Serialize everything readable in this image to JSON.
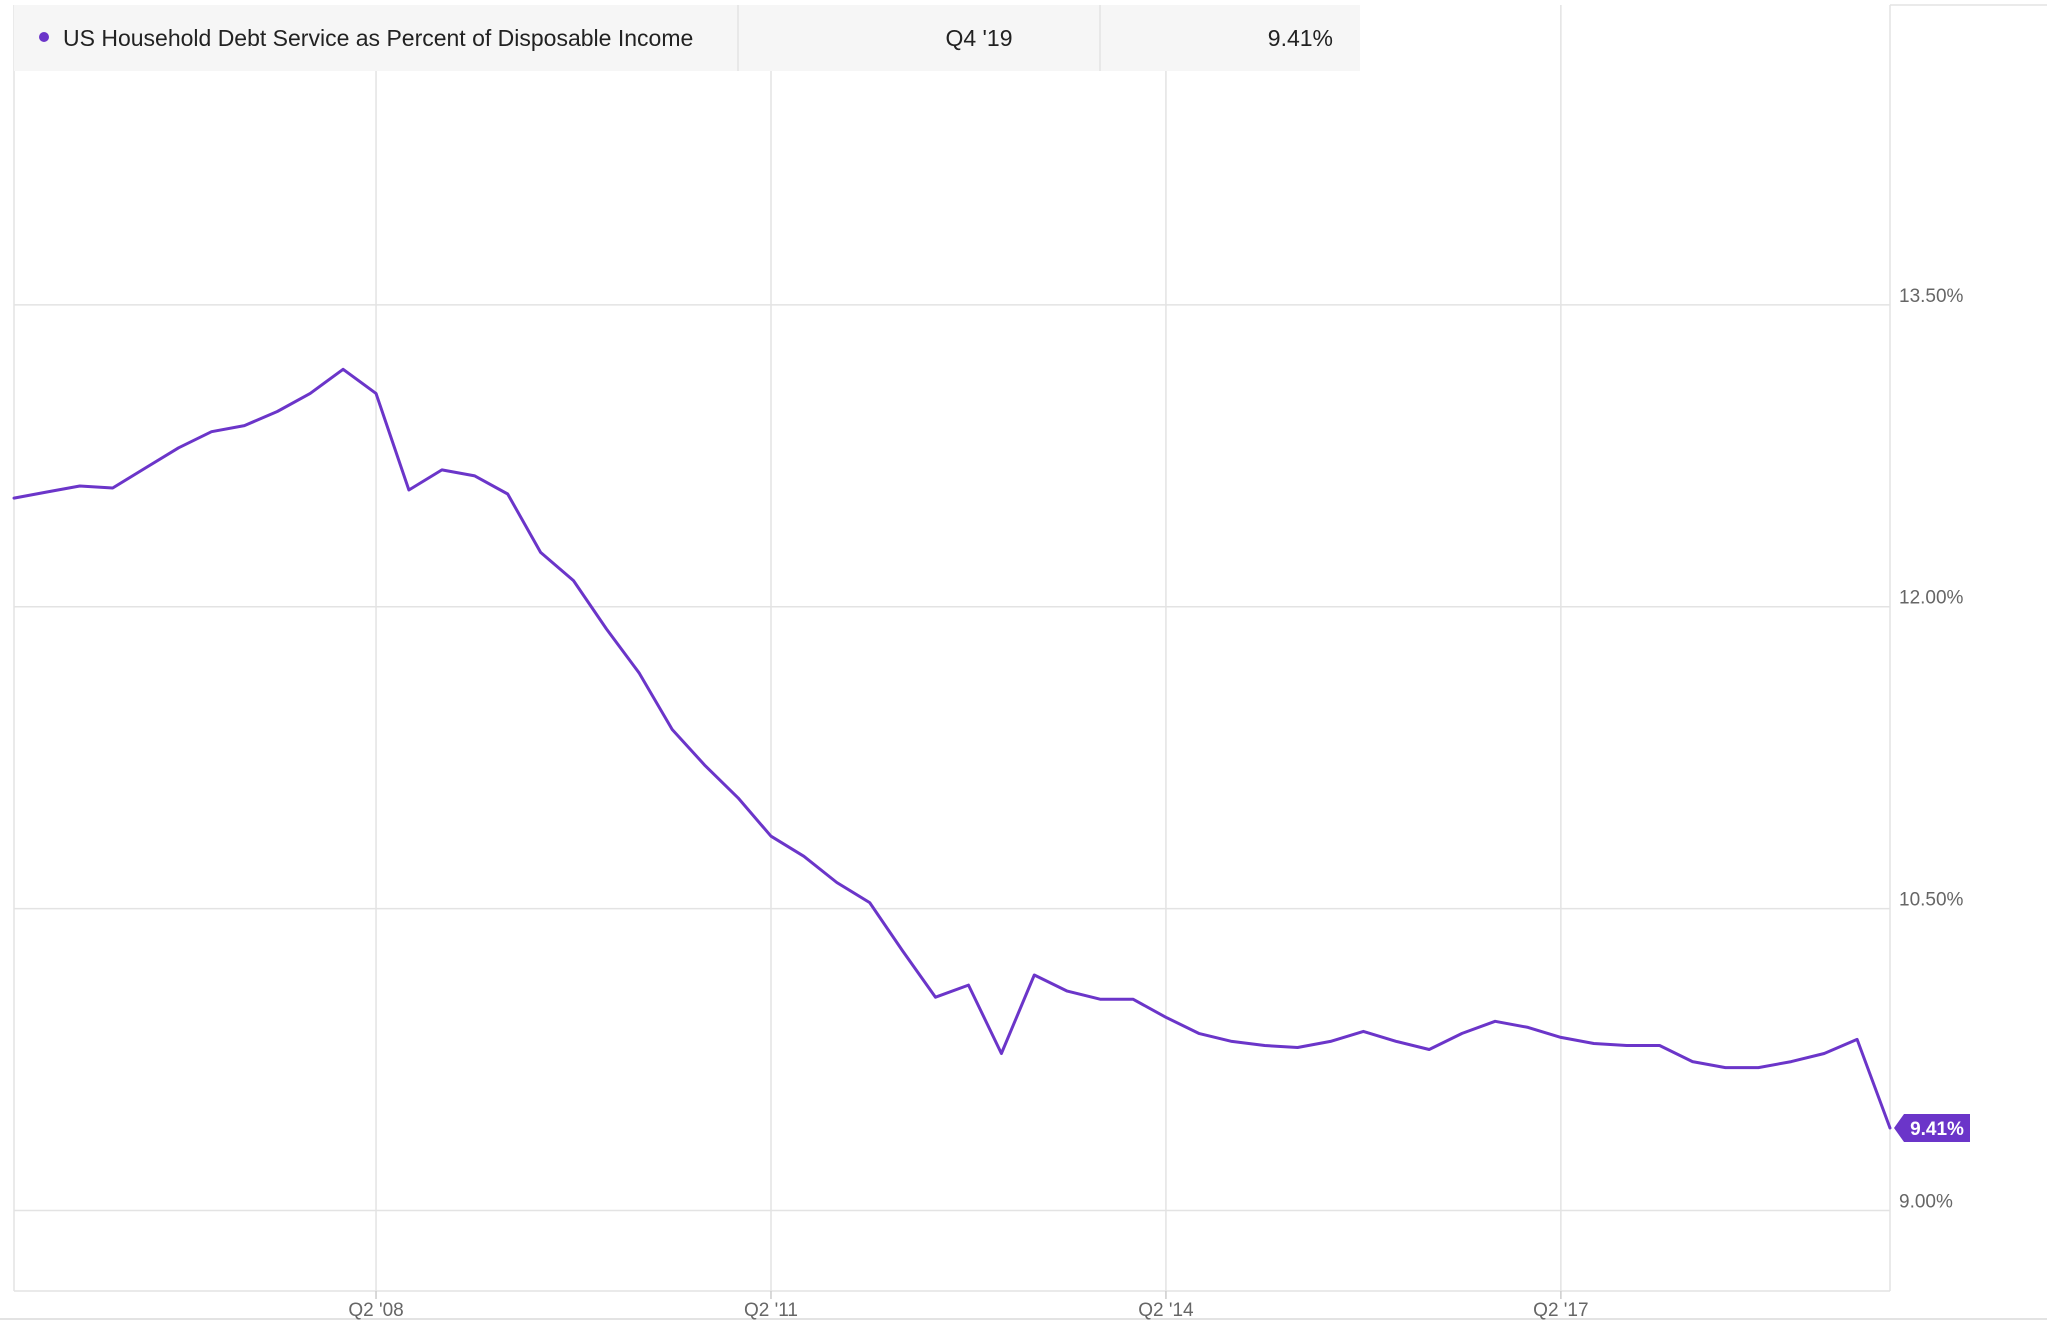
{
  "legend": {
    "series_name": "US Household Debt Service as Percent of Disposable Income",
    "period": "Q4 '19",
    "value": "9.41%"
  },
  "colors": {
    "series": "#6b35c9",
    "grid": "#e3e3e3",
    "axis_text": "#666666",
    "legend_bg": "#f6f6f6",
    "badge_text": "#ffffff"
  },
  "chart_data": {
    "type": "line",
    "title": "",
    "xlabel": "",
    "ylabel": "",
    "x_tick_labels": [
      "Q2 '08",
      "Q2 '11",
      "Q2 '14",
      "Q2 '17"
    ],
    "x_tick_positions": [
      "Q2 2008",
      "Q2 2011",
      "Q2 2014",
      "Q2 2017"
    ],
    "y_ticks": [
      9.0,
      10.5,
      12.0,
      13.5
    ],
    "y_tick_labels": [
      "9.00%",
      "10.50%",
      "12.00%",
      "13.50%"
    ],
    "ylim": [
      8.6,
      14.99
    ],
    "xlim": [
      "Q3 2005",
      "Q4 2019"
    ],
    "grid": true,
    "legend_position": "top-left",
    "last_value_label": "9.41%",
    "series": [
      {
        "name": "US Household Debt Service as Percent of Disposable Income",
        "x": [
          "Q3 2005",
          "Q4 2005",
          "Q1 2006",
          "Q2 2006",
          "Q3 2006",
          "Q4 2006",
          "Q1 2007",
          "Q2 2007",
          "Q3 2007",
          "Q4 2007",
          "Q1 2008",
          "Q2 2008",
          "Q3 2008",
          "Q4 2008",
          "Q1 2009",
          "Q2 2009",
          "Q3 2009",
          "Q4 2009",
          "Q1 2010",
          "Q2 2010",
          "Q3 2010",
          "Q4 2010",
          "Q1 2011",
          "Q2 2011",
          "Q3 2011",
          "Q4 2011",
          "Q1 2012",
          "Q2 2012",
          "Q3 2012",
          "Q4 2012",
          "Q1 2013",
          "Q2 2013",
          "Q3 2013",
          "Q4 2013",
          "Q1 2014",
          "Q2 2014",
          "Q3 2014",
          "Q4 2014",
          "Q1 2015",
          "Q2 2015",
          "Q3 2015",
          "Q4 2015",
          "Q1 2016",
          "Q2 2016",
          "Q3 2016",
          "Q4 2016",
          "Q1 2017",
          "Q2 2017",
          "Q3 2017",
          "Q4 2017",
          "Q1 2018",
          "Q2 2018",
          "Q3 2018",
          "Q4 2018",
          "Q1 2019",
          "Q2 2019",
          "Q3 2019",
          "Q4 2019"
        ],
        "values": [
          12.54,
          12.57,
          12.6,
          12.59,
          12.69,
          12.79,
          12.87,
          12.9,
          12.97,
          13.06,
          13.18,
          13.06,
          12.58,
          12.68,
          12.65,
          12.56,
          12.27,
          12.13,
          11.89,
          11.67,
          11.39,
          11.21,
          11.05,
          10.86,
          10.76,
          10.63,
          10.53,
          10.29,
          10.06,
          10.12,
          9.78,
          10.17,
          10.09,
          10.05,
          10.05,
          9.96,
          9.88,
          9.84,
          9.82,
          9.81,
          9.84,
          9.89,
          9.84,
          9.8,
          9.88,
          9.94,
          9.91,
          9.86,
          9.83,
          9.82,
          9.82,
          9.74,
          9.71,
          9.71,
          9.74,
          9.78,
          9.85,
          9.41
        ]
      }
    ]
  }
}
